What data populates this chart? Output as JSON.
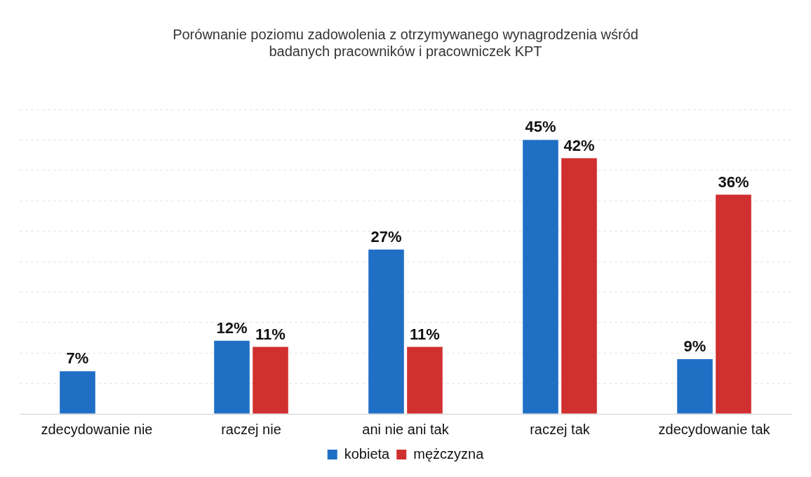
{
  "chart_data": {
    "type": "bar",
    "title": "Porównanie poziomu zadowolenia z otrzymywanego wynagrodzenia wśród\nbadanych pracowników i pracowniczek KPT",
    "categories": [
      "zdecydowanie nie",
      "raczej nie",
      "ani nie ani tak",
      "raczej tak",
      "zdecydowanie tak"
    ],
    "series": [
      {
        "name": "kobieta",
        "color": "#1f6fc5",
        "values": [
          7,
          12,
          27,
          45,
          9
        ],
        "value_labels": [
          "7%",
          "12%",
          "27%",
          "45%",
          "9%"
        ]
      },
      {
        "name": "mężczyzna",
        "color": "#d0302f",
        "values": [
          null,
          11,
          11,
          42,
          36
        ],
        "value_labels": [
          null,
          "11%",
          "11%",
          "42%",
          "36%"
        ]
      }
    ],
    "ylim": [
      0,
      50
    ],
    "yticks": [
      {
        "value": 0,
        "label": null
      },
      {
        "value": 5,
        "label": null
      },
      {
        "value": 10,
        "label": null
      },
      {
        "value": 15,
        "label": null
      },
      {
        "value": 20,
        "label": null
      },
      {
        "value": 25,
        "label": null
      },
      {
        "value": 30,
        "label": null
      },
      {
        "value": 35,
        "label": null
      },
      {
        "value": 40,
        "label": null
      },
      {
        "value": 45,
        "label": null
      },
      {
        "value": 50,
        "label": null
      }
    ],
    "tick_labels": "x",
    "grid": "y",
    "legend": "bottom"
  }
}
